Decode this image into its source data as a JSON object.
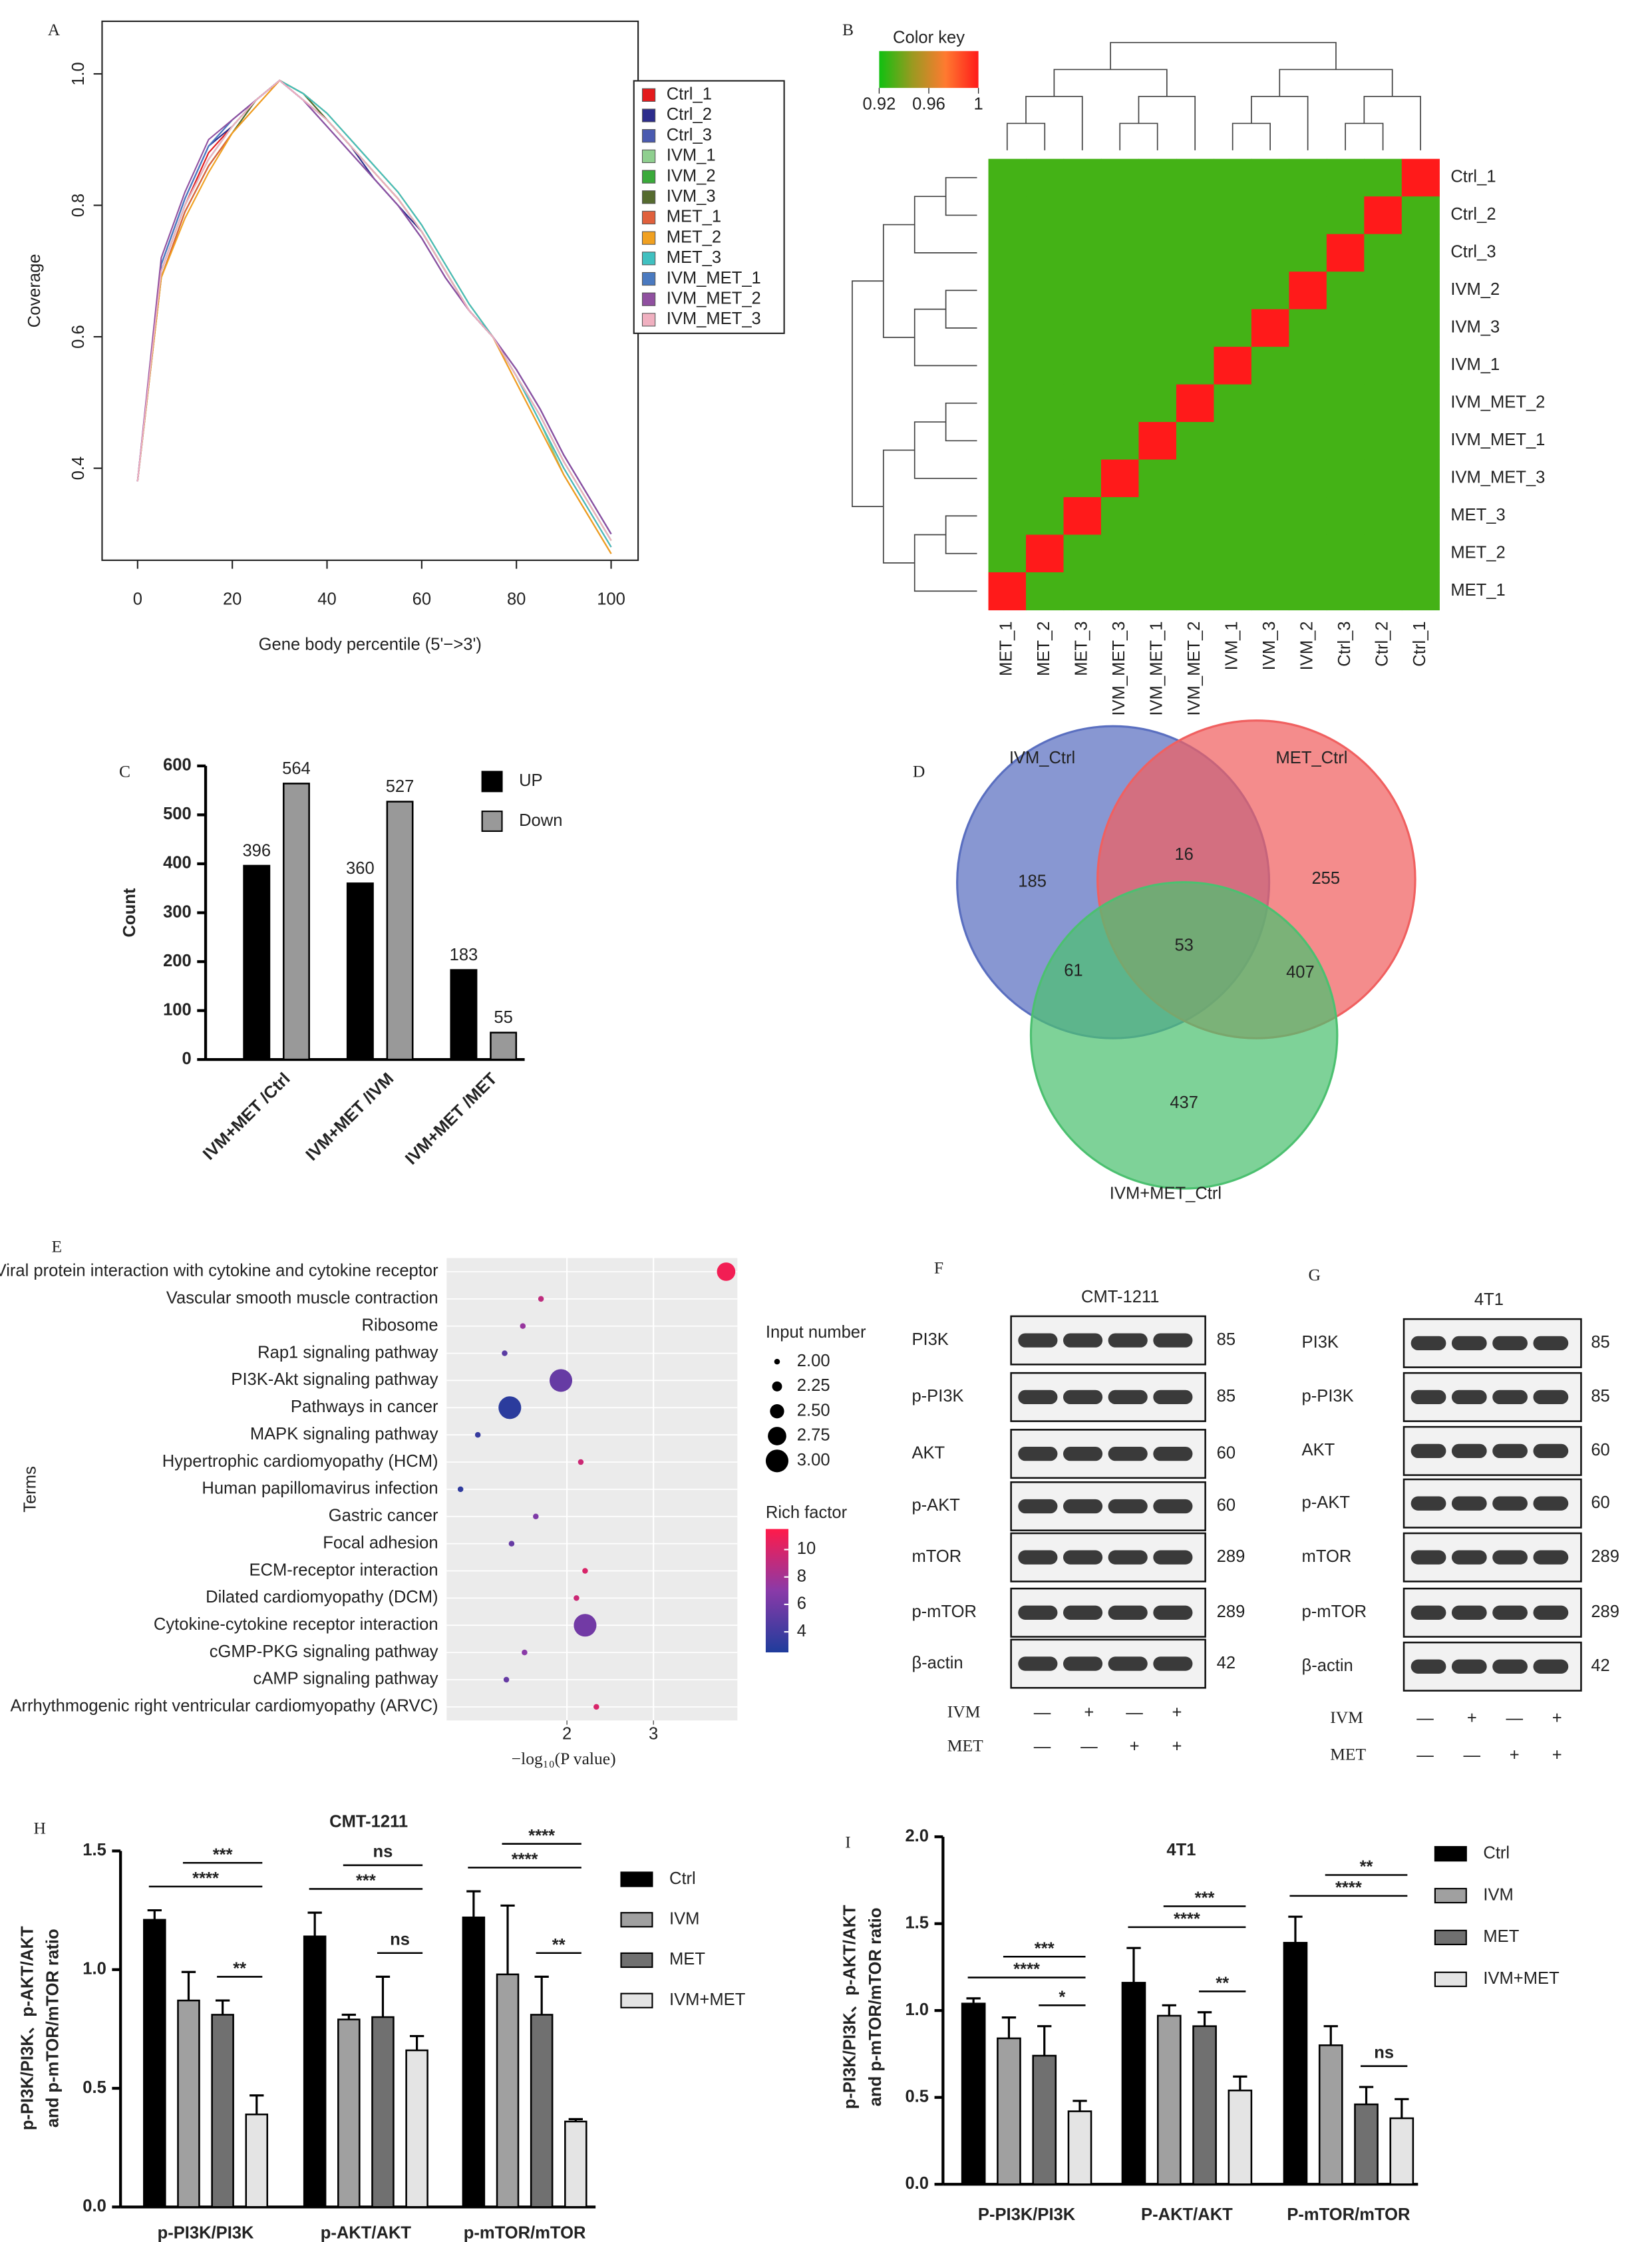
{
  "chart_data": [
    {
      "label": "A",
      "type": "line",
      "xlabel": "Gene body percentile (5'−>3')",
      "ylabel": "Coverage",
      "x": [
        0,
        5,
        10,
        15,
        20,
        25,
        30,
        35,
        40,
        45,
        50,
        55,
        60,
        65,
        70,
        75,
        80,
        85,
        90,
        95,
        100
      ],
      "xlim": [
        -7.5,
        105.7
      ],
      "ylim": [
        0.26,
        1.08
      ],
      "xticks": [
        0,
        20,
        40,
        60,
        80,
        100
      ],
      "yticks": [
        0.4,
        0.6,
        0.8,
        {
          "value": 1.0,
          "label": "1.0"
        }
      ],
      "series": [
        {
          "name": "Ctrl_1",
          "color": "#e41a1c",
          "values": [
            0.38,
            0.7,
            0.8,
            0.88,
            0.92,
            0.96,
            0.99,
            0.96,
            0.93,
            0.89,
            0.85,
            0.81,
            0.76,
            0.7,
            0.64,
            0.6,
            0.54,
            0.47,
            0.4,
            0.34,
            0.28
          ]
        },
        {
          "name": "Ctrl_2",
          "color": "#2c2c8c",
          "values": [
            0.38,
            0.71,
            0.81,
            0.89,
            0.92,
            0.96,
            0.99,
            0.96,
            0.93,
            0.89,
            0.84,
            0.8,
            0.76,
            0.7,
            0.64,
            0.6,
            0.55,
            0.49,
            0.42,
            0.36,
            0.3
          ]
        },
        {
          "name": "Ctrl_3",
          "color": "#4a5ab0",
          "values": [
            0.38,
            0.71,
            0.81,
            0.89,
            0.93,
            0.96,
            0.99,
            0.96,
            0.92,
            0.88,
            0.84,
            0.8,
            0.75,
            0.69,
            0.64,
            0.6,
            0.55,
            0.49,
            0.42,
            0.36,
            0.3
          ]
        },
        {
          "name": "IVM_1",
          "color": "#8fcf8f",
          "values": [
            0.38,
            0.69,
            0.79,
            0.86,
            0.91,
            0.96,
            0.99,
            0.97,
            0.94,
            0.9,
            0.86,
            0.82,
            0.77,
            0.71,
            0.65,
            0.6,
            0.54,
            0.47,
            0.39,
            0.33,
            0.27
          ]
        },
        {
          "name": "IVM_2",
          "color": "#3aaa3a",
          "values": [
            0.38,
            0.7,
            0.8,
            0.87,
            0.92,
            0.96,
            0.99,
            0.97,
            0.93,
            0.89,
            0.85,
            0.81,
            0.76,
            0.7,
            0.64,
            0.6,
            0.54,
            0.48,
            0.41,
            0.35,
            0.29
          ]
        },
        {
          "name": "IVM_3",
          "color": "#556b2f",
          "values": [
            0.38,
            0.69,
            0.79,
            0.86,
            0.91,
            0.96,
            0.99,
            0.97,
            0.93,
            0.89,
            0.85,
            0.81,
            0.76,
            0.7,
            0.64,
            0.6,
            0.54,
            0.48,
            0.41,
            0.35,
            0.29
          ]
        },
        {
          "name": "MET_1",
          "color": "#e0603c",
          "values": [
            0.38,
            0.69,
            0.79,
            0.86,
            0.91,
            0.95,
            0.99,
            0.97,
            0.94,
            0.9,
            0.86,
            0.82,
            0.77,
            0.71,
            0.65,
            0.6,
            0.53,
            0.46,
            0.39,
            0.33,
            0.27
          ]
        },
        {
          "name": "MET_2",
          "color": "#f0a020",
          "values": [
            0.38,
            0.69,
            0.78,
            0.85,
            0.91,
            0.95,
            0.99,
            0.97,
            0.94,
            0.9,
            0.86,
            0.82,
            0.77,
            0.71,
            0.65,
            0.6,
            0.53,
            0.46,
            0.39,
            0.33,
            0.27
          ]
        },
        {
          "name": "MET_3",
          "color": "#40c0c0",
          "values": [
            0.38,
            0.7,
            0.8,
            0.87,
            0.92,
            0.96,
            0.99,
            0.97,
            0.94,
            0.9,
            0.86,
            0.82,
            0.77,
            0.71,
            0.65,
            0.6,
            0.54,
            0.47,
            0.4,
            0.34,
            0.28
          ]
        },
        {
          "name": "IVM_MET_1",
          "color": "#4a7ac0",
          "values": [
            0.38,
            0.71,
            0.81,
            0.89,
            0.93,
            0.96,
            0.99,
            0.96,
            0.92,
            0.88,
            0.84,
            0.8,
            0.75,
            0.69,
            0.64,
            0.6,
            0.55,
            0.49,
            0.42,
            0.36,
            0.3
          ]
        },
        {
          "name": "IVM_MET_2",
          "color": "#9050a0",
          "values": [
            0.38,
            0.72,
            0.82,
            0.9,
            0.93,
            0.96,
            0.99,
            0.96,
            0.92,
            0.88,
            0.84,
            0.8,
            0.75,
            0.69,
            0.64,
            0.6,
            0.55,
            0.49,
            0.42,
            0.36,
            0.3
          ]
        },
        {
          "name": "IVM_MET_3",
          "color": "#f0b0c0",
          "values": [
            0.38,
            0.7,
            0.8,
            0.87,
            0.92,
            0.96,
            0.99,
            0.96,
            0.93,
            0.89,
            0.85,
            0.81,
            0.76,
            0.7,
            0.64,
            0.6,
            0.54,
            0.48,
            0.41,
            0.35,
            0.29
          ]
        }
      ]
    },
    {
      "label": "B",
      "type": "heatmap",
      "key_title": "Color key",
      "clim": [
        0.92,
        1
      ],
      "cticks": [
        0.92,
        0.96,
        1
      ],
      "colors": [
        "#10c010",
        "#9a9a20",
        "#ff7a30",
        "#ff1a1a"
      ],
      "rows": [
        "Ctrl_1",
        "Ctrl_2",
        "Ctrl_3",
        "IVM_2",
        "IVM_3",
        "IVM_1",
        "IVM_MET_2",
        "IVM_MET_1",
        "IVM_MET_3",
        "MET_3",
        "MET_2",
        "MET_1"
      ],
      "columns": [
        "MET_1",
        "MET_2",
        "MET_3",
        "IVM_MET_3",
        "IVM_MET_1",
        "IVM_MET_2",
        "IVM_1",
        "IVM_3",
        "IVM_2",
        "Ctrl_3",
        "Ctrl_2",
        "Ctrl_1"
      ],
      "values": [
        [
          0.93,
          0.93,
          0.93,
          0.93,
          0.93,
          0.93,
          0.93,
          0.93,
          0.93,
          0.93,
          0.93,
          1
        ],
        [
          0.93,
          0.93,
          0.93,
          0.93,
          0.93,
          0.93,
          0.93,
          0.93,
          0.93,
          0.93,
          1,
          0.93
        ],
        [
          0.93,
          0.93,
          0.93,
          0.93,
          0.93,
          0.93,
          0.93,
          0.93,
          0.93,
          1,
          0.93,
          0.93
        ],
        [
          0.93,
          0.93,
          0.93,
          0.93,
          0.93,
          0.93,
          0.93,
          0.93,
          1,
          0.93,
          0.93,
          0.93
        ],
        [
          0.93,
          0.93,
          0.93,
          0.93,
          0.93,
          0.93,
          0.93,
          1,
          0.93,
          0.93,
          0.93,
          0.93
        ],
        [
          0.93,
          0.93,
          0.93,
          0.93,
          0.93,
          0.93,
          1,
          0.93,
          0.93,
          0.93,
          0.93,
          0.93
        ],
        [
          0.93,
          0.93,
          0.93,
          0.93,
          0.93,
          1,
          0.93,
          0.93,
          0.93,
          0.93,
          0.93,
          0.93
        ],
        [
          0.93,
          0.93,
          0.93,
          0.93,
          1,
          0.93,
          0.93,
          0.93,
          0.93,
          0.93,
          0.93,
          0.93
        ],
        [
          0.93,
          0.93,
          0.93,
          1,
          0.93,
          0.93,
          0.93,
          0.93,
          0.93,
          0.93,
          0.93,
          0.93
        ],
        [
          0.93,
          0.93,
          1,
          0.93,
          0.93,
          0.93,
          0.93,
          0.93,
          0.93,
          0.93,
          0.93,
          0.93
        ],
        [
          0.93,
          1,
          0.93,
          0.93,
          0.93,
          0.93,
          0.93,
          0.93,
          0.93,
          0.93,
          0.93,
          0.93
        ],
        [
          1,
          0.93,
          0.93,
          0.93,
          0.93,
          0.93,
          0.93,
          0.93,
          0.93,
          0.93,
          0.93,
          0.93
        ]
      ]
    },
    {
      "label": "C",
      "type": "bar",
      "ylabel": "Count",
      "data_labels": true,
      "categories": [
        "IVM+MET /Ctrl",
        "IVM+MET /IVM",
        "IVM+MET /MET"
      ],
      "ylim": [
        0,
        600
      ],
      "yticks": [
        0,
        100,
        200,
        300,
        400,
        500,
        600
      ],
      "series": [
        {
          "name": "UP",
          "color": "#000000",
          "values": [
            396,
            360,
            183
          ]
        },
        {
          "name": "Down",
          "color": "#999999",
          "values": [
            564,
            527,
            55
          ]
        }
      ]
    },
    {
      "label": "D",
      "type": "venn",
      "sets": [
        "IVM_Ctrl",
        "MET_Ctrl",
        "IVM+MET_Ctrl"
      ],
      "colors": [
        "#5a6fc0",
        "#f06060",
        "#4cc070"
      ],
      "values": [
        185,
        255,
        437,
        16,
        61,
        407,
        53
      ]
    },
    {
      "label": "E",
      "type": "dot",
      "ylabel": "Terms",
      "xlabel": "−log₁₀(P value)",
      "xlim": [
        0.61,
        3.97
      ],
      "xticks": [
        2,
        3
      ],
      "terms": [
        "Viral protein interaction with cytokine and cytokine receptor",
        "Vascular smooth muscle contraction",
        "Ribosome",
        "Rap1 signaling pathway",
        "PI3K-Akt signaling pathway",
        "Pathways in cancer",
        "MAPK signaling pathway",
        "Hypertrophic cardiomyopathy (HCM)",
        "Human papillomavirus infection",
        "Gastric cancer",
        "Focal adhesion",
        "ECM-receptor interaction",
        "Dilated cardiomyopathy (DCM)",
        "Cytokine-cytokine receptor interaction",
        "cGMP-PKG signaling pathway",
        "cAMP signaling pathway",
        "Arrhythmogenic right ventricular cardiomyopathy (ARVC)"
      ],
      "x": [
        3.84,
        1.7,
        1.49,
        1.28,
        1.93,
        1.34,
        0.97,
        2.16,
        0.77,
        1.64,
        1.36,
        2.21,
        2.11,
        2.21,
        1.51,
        1.3,
        2.34
      ],
      "size": [
        2.75,
        2,
        2,
        2,
        3,
        3,
        2,
        2,
        2,
        2,
        2,
        2,
        2,
        3,
        2,
        2,
        2
      ],
      "rich_factor": [
        11,
        9,
        7.5,
        5,
        5.5,
        3,
        3.5,
        9.5,
        3.2,
        6.5,
        5.5,
        10,
        9.5,
        6,
        7,
        5.5,
        10
      ],
      "size_title": "Input number",
      "size_ticks": [
        {
          "value": 2,
          "label": "2.00"
        },
        {
          "value": 2.25,
          "label": "2.25"
        },
        {
          "value": 2.5,
          "label": "2.50"
        },
        {
          "value": 2.75,
          "label": "2.75"
        },
        {
          "value": 3,
          "label": "3.00"
        }
      ],
      "color_title": "Rich factor",
      "clim": [
        2.5,
        11.5
      ],
      "cticks": [
        4,
        6,
        8,
        10
      ],
      "colors": [
        "#1f3c9c",
        "#8a3aa8",
        "#ff1a4a"
      ]
    },
    {
      "label": "F",
      "type": "blot",
      "title": "CMT-1211",
      "proteins": [
        "PI3K",
        "p-PI3K",
        "AKT",
        "p-AKT",
        "mTOR",
        "p-mTOR",
        "β-actin"
      ],
      "sizes": [
        85,
        85,
        60,
        60,
        289,
        289,
        42
      ],
      "treatments": [
        {
          "name": "IVM",
          "signs": [
            "—",
            "+",
            "—",
            "+"
          ]
        },
        {
          "name": "MET",
          "signs": [
            "—",
            "—",
            "+",
            "+"
          ]
        }
      ]
    },
    {
      "label": "G",
      "type": "blot",
      "title": "4T1",
      "proteins": [
        "PI3K",
        "p-PI3K",
        "AKT",
        "p-AKT",
        "mTOR",
        "p-mTOR",
        "β-actin"
      ],
      "sizes": [
        85,
        85,
        60,
        60,
        289,
        289,
        42
      ],
      "treatments": [
        {
          "name": "IVM",
          "signs": [
            "—",
            "+",
            "—",
            "+"
          ]
        },
        {
          "name": "MET",
          "signs": [
            "—",
            "—",
            "+",
            "+"
          ]
        }
      ]
    },
    {
      "label": "H",
      "type": "bar",
      "title": "CMT-1211",
      "ylabel": [
        "p-PI3K/PI3K、p-AKT/AKT",
        "and p-mTOR/mTOR ratio"
      ],
      "categories": [
        "p-PI3K/PI3K",
        "p-AKT/AKT",
        "p-mTOR/mTOR"
      ],
      "ylim": [
        0,
        1.5
      ],
      "yticks": [
        {
          "value": 0,
          "label": "0.0"
        },
        {
          "value": 0.5,
          "label": "0.5"
        },
        {
          "value": 1.0,
          "label": "1.0"
        },
        {
          "value": 1.5,
          "label": "1.5"
        }
      ],
      "series": [
        {
          "name": "Ctrl",
          "color": "#000000",
          "values": [
            1.21,
            1.14,
            1.22
          ],
          "errors": [
            0.04,
            0.1,
            0.11
          ]
        },
        {
          "name": "IVM",
          "color": "#a0a0a0",
          "values": [
            0.87,
            0.79,
            0.98
          ],
          "errors": [
            0.12,
            0.02,
            0.29
          ]
        },
        {
          "name": "MET",
          "color": "#707070",
          "values": [
            0.81,
            0.8,
            0.81
          ],
          "errors": [
            0.06,
            0.17,
            0.16
          ]
        },
        {
          "name": "IVM+MET",
          "color": "#e4e4e4",
          "values": [
            0.39,
            0.66,
            0.36
          ],
          "errors": [
            0.08,
            0.06,
            0.01
          ]
        }
      ],
      "annotations": [
        {
          "group": 0,
          "from": 2,
          "to": 3,
          "label": "**"
        },
        {
          "group": 0,
          "from": 0,
          "to": 3,
          "label": "****"
        },
        {
          "group": 0,
          "from": 1,
          "to": 3,
          "label": "***"
        },
        {
          "group": 1,
          "from": 2,
          "to": 3,
          "label": "ns"
        },
        {
          "group": 1,
          "from": 0,
          "to": 3,
          "label": "***"
        },
        {
          "group": 1,
          "from": 1,
          "to": 3,
          "label": "ns"
        },
        {
          "group": 2,
          "from": 2,
          "to": 3,
          "label": "**"
        },
        {
          "group": 2,
          "from": 0,
          "to": 3,
          "label": "****"
        },
        {
          "group": 2,
          "from": 1,
          "to": 3,
          "label": "****"
        }
      ]
    },
    {
      "label": "I",
      "type": "bar",
      "title": "4T1",
      "ylabel": [
        "p-PI3K/PI3K、p-AKT/AKT",
        "and p-mTOR/mTOR ratio"
      ],
      "categories": [
        "P-PI3K/PI3K",
        "P-AKT/AKT",
        "P-mTOR/mTOR"
      ],
      "ylim": [
        0,
        2.0
      ],
      "yticks": [
        {
          "value": 0,
          "label": "0.0"
        },
        {
          "value": 0.5,
          "label": "0.5"
        },
        {
          "value": 1.0,
          "label": "1.0"
        },
        {
          "value": 1.5,
          "label": "1.5"
        },
        {
          "value": 2.0,
          "label": "2.0"
        }
      ],
      "series": [
        {
          "name": "Ctrl",
          "color": "#000000",
          "values": [
            1.04,
            1.16,
            1.39
          ],
          "errors": [
            0.03,
            0.2,
            0.15
          ]
        },
        {
          "name": "IVM",
          "color": "#a0a0a0",
          "values": [
            0.84,
            0.97,
            0.8
          ],
          "errors": [
            0.12,
            0.06,
            0.11
          ]
        },
        {
          "name": "MET",
          "color": "#707070",
          "values": [
            0.74,
            0.91,
            0.46
          ],
          "errors": [
            0.17,
            0.08,
            0.1
          ]
        },
        {
          "name": "IVM+MET",
          "color": "#e4e4e4",
          "values": [
            0.42,
            0.54,
            0.38
          ],
          "errors": [
            0.06,
            0.08,
            0.11
          ]
        }
      ],
      "annotations": [
        {
          "group": 0,
          "from": 2,
          "to": 3,
          "label": "*"
        },
        {
          "group": 0,
          "from": 0,
          "to": 3,
          "label": "****"
        },
        {
          "group": 0,
          "from": 1,
          "to": 3,
          "label": "***"
        },
        {
          "group": 1,
          "from": 2,
          "to": 3,
          "label": "**"
        },
        {
          "group": 1,
          "from": 0,
          "to": 3,
          "label": "****"
        },
        {
          "group": 1,
          "from": 1,
          "to": 3,
          "label": "***"
        },
        {
          "group": 2,
          "from": 2,
          "to": 3,
          "label": "ns"
        },
        {
          "group": 2,
          "from": 0,
          "to": 3,
          "label": "****"
        },
        {
          "group": 2,
          "from": 1,
          "to": 3,
          "label": "**"
        }
      ]
    }
  ]
}
